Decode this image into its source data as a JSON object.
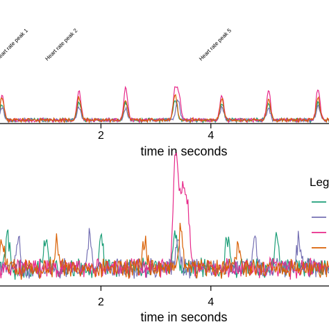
{
  "chart_data": [
    {
      "type": "line",
      "xlabel": "time in seconds",
      "xticks": [
        2,
        4
      ],
      "xlim": [
        0.1,
        6.2
      ],
      "ylim": [
        0,
        1
      ],
      "annotations": [
        {
          "text": "Heart rate peak 1",
          "x": 0.1
        },
        {
          "text": "Heart rate peak 2",
          "x": 1.0
        },
        {
          "text": "Heart rate peak 5",
          "x": 3.8
        }
      ],
      "series": [
        {
          "color": "#1b9e77",
          "peaks": [
            [
              0.2,
              0.3
            ],
            [
              1.6,
              0.35
            ],
            [
              2.45,
              0.35
            ],
            [
              3.35,
              0.42
            ],
            [
              4.2,
              0.33
            ],
            [
              5.05,
              0.33
            ],
            [
              5.95,
              0.35
            ]
          ]
        },
        {
          "color": "#7570b3",
          "peaks": [
            [
              0.2,
              0.25
            ],
            [
              1.6,
              0.25
            ],
            [
              2.45,
              0.22
            ],
            [
              3.4,
              0.4
            ],
            [
              4.2,
              0.26
            ],
            [
              5.05,
              0.22
            ],
            [
              5.95,
              0.28
            ]
          ]
        },
        {
          "color": "#e7298a",
          "peaks": [
            [
              0.2,
              0.5
            ],
            [
              1.6,
              0.58
            ],
            [
              2.45,
              0.62
            ],
            [
              3.35,
              0.6
            ],
            [
              3.42,
              0.45
            ],
            [
              4.2,
              0.48
            ],
            [
              5.05,
              0.58
            ],
            [
              5.95,
              0.62
            ]
          ]
        },
        {
          "color": "#d95f02",
          "peaks": [
            [
              0.2,
              0.45
            ],
            [
              1.6,
              0.45
            ],
            [
              2.45,
              0.38
            ],
            [
              3.35,
              0.52
            ],
            [
              4.2,
              0.42
            ],
            [
              5.05,
              0.4
            ],
            [
              5.95,
              0.45
            ]
          ]
        }
      ]
    },
    {
      "type": "line",
      "xlabel": "time in seconds",
      "xticks": [
        2,
        4
      ],
      "xlim": [
        0.1,
        6.2
      ],
      "ylim": [
        0,
        1
      ],
      "legend": {
        "title": "Leg",
        "placement": "right"
      },
      "series": [
        {
          "color": "#1b9e77",
          "peaks": [
            [
              0.3,
              0.32
            ],
            [
              1.0,
              0.28
            ],
            [
              2.0,
              0.3
            ],
            [
              3.35,
              0.35
            ],
            [
              4.3,
              0.28
            ],
            [
              5.2,
              0.28
            ]
          ]
        },
        {
          "color": "#7570b3",
          "peaks": [
            [
              0.5,
              0.25
            ],
            [
              1.8,
              0.3
            ],
            [
              3.4,
              0.3
            ],
            [
              4.8,
              0.3
            ],
            [
              5.6,
              0.28
            ]
          ]
        },
        {
          "color": "#e7298a",
          "peaks": [
            [
              3.35,
              1.0
            ],
            [
              3.42,
              0.6
            ],
            [
              3.5,
              0.7
            ],
            [
              3.58,
              0.55
            ]
          ]
        },
        {
          "color": "#d95f02",
          "peaks": [
            [
              0.2,
              0.25
            ],
            [
              1.2,
              0.28
            ],
            [
              2.8,
              0.25
            ],
            [
              3.45,
              0.35
            ],
            [
              4.5,
              0.22
            ]
          ]
        }
      ]
    }
  ]
}
